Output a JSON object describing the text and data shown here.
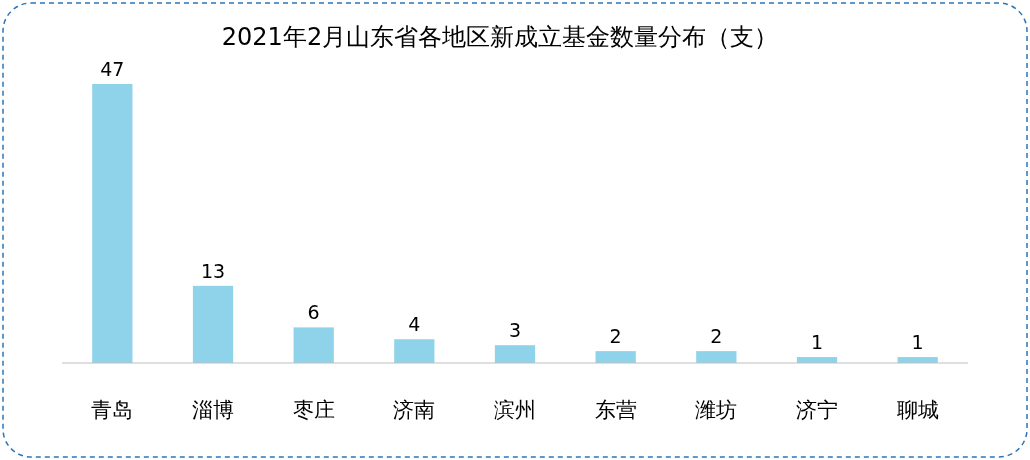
{
  "chart_data": {
    "type": "bar",
    "title": "2021年2月山东省各地区新成立基金数量分布（支）",
    "categories": [
      "青岛",
      "淄博",
      "枣庄",
      "济南",
      "滨州",
      "东营",
      "潍坊",
      "济宁",
      "聊城"
    ],
    "values": [
      47,
      13,
      6,
      4,
      3,
      2,
      2,
      1,
      1
    ],
    "color": "#8fd3ea",
    "data_labels": true
  }
}
